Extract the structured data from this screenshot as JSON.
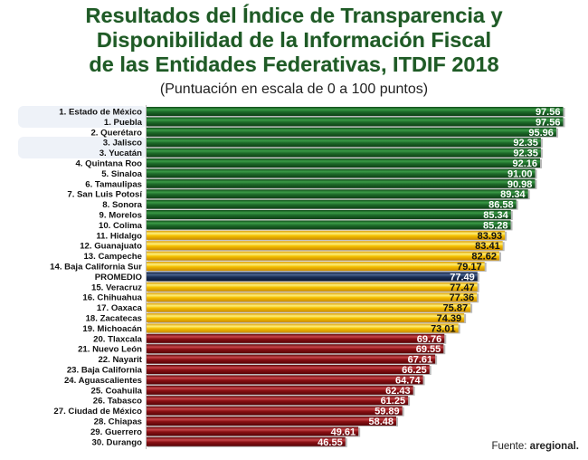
{
  "chart_data": {
    "type": "bar",
    "orientation": "horizontal",
    "title": "Resultados del Índice de Transparencia y Disponibilidad de la Información Fiscal de las Entidades Federativas, ITDIF 2018",
    "title_lines": [
      "Resultados del Índice de Transparencia y",
      "Disponibilidad de la Información Fiscal",
      "de las Entidades Federativas, ITDIF 2018"
    ],
    "subtitle": "(Puntuación en escala de 0 a 100 puntos)",
    "xlabel": "",
    "ylabel": "",
    "xlim": [
      0,
      100
    ],
    "grid": false,
    "legend": "none",
    "categories": [
      "1. Estado de México",
      "1. Puebla",
      "2. Querétaro",
      "3. Jalisco",
      "3. Yucatán",
      "4. Quintana Roo",
      "5. Sinaloa",
      "6. Tamaulipas",
      "7. San Luis Potosí",
      "8. Sonora",
      "9. Morelos",
      "10. Colima",
      "11. Hidalgo",
      "12. Guanajuato",
      "13. Campeche",
      "14. Baja California Sur",
      "PROMEDIO",
      "15. Veracruz",
      "16. Chihuahua",
      "17. Oaxaca",
      "18. Zacatecas",
      "19. Michoacán",
      "20. Tlaxcala",
      "21. Nuevo León",
      "22. Nayarit",
      "23. Baja California",
      "24. Aguascalientes",
      "25. Coahuila",
      "26. Tabasco",
      "27. Ciudad de México",
      "28. Chiapas",
      "29. Guerrero",
      "30. Durango"
    ],
    "values": [
      97.56,
      97.56,
      95.96,
      92.35,
      92.35,
      92.16,
      91.0,
      90.98,
      89.34,
      86.58,
      85.34,
      85.28,
      83.93,
      83.41,
      82.62,
      79.17,
      77.49,
      77.47,
      77.36,
      75.87,
      74.39,
      73.01,
      69.76,
      69.55,
      67.61,
      66.25,
      64.74,
      62.43,
      61.25,
      59.89,
      58.48,
      49.61,
      46.55
    ],
    "value_labels": [
      "97.56",
      "97.56",
      "95.96",
      "92.35",
      "92.35",
      "92.16",
      "91.00",
      "90.98",
      "89.34",
      "86.58",
      "85.34",
      "85.28",
      "83.93",
      "83.41",
      "82.62",
      "79.17",
      "77.49",
      "77.47",
      "77.36",
      "75.87",
      "74.39",
      "73.01",
      "69.76",
      "69.55",
      "67.61",
      "66.25",
      "64.74",
      "62.43",
      "61.25",
      "59.89",
      "58.48",
      "49.61",
      "46.55"
    ],
    "groups": [
      "high",
      "high",
      "high",
      "high",
      "high",
      "high",
      "high",
      "high",
      "high",
      "high",
      "high",
      "high",
      "mid",
      "mid",
      "mid",
      "mid",
      "average",
      "mid",
      "mid",
      "mid",
      "mid",
      "mid",
      "low",
      "low",
      "low",
      "low",
      "low",
      "low",
      "low",
      "low",
      "low",
      "low",
      "low"
    ],
    "group_colors": {
      "high": "#1e6b2a",
      "mid": "#f5c000",
      "average": "#1a2f55",
      "low": "#8a1014"
    },
    "label_colors": {
      "high": "#ffffff",
      "mid": "#111111",
      "average": "#ffffff",
      "low": "#ffffff"
    },
    "tied_groups_highlighted": [
      [
        0,
        1
      ],
      [
        3,
        4
      ]
    ]
  },
  "source": {
    "prefix": "Fuente: ",
    "name": "aregional."
  }
}
